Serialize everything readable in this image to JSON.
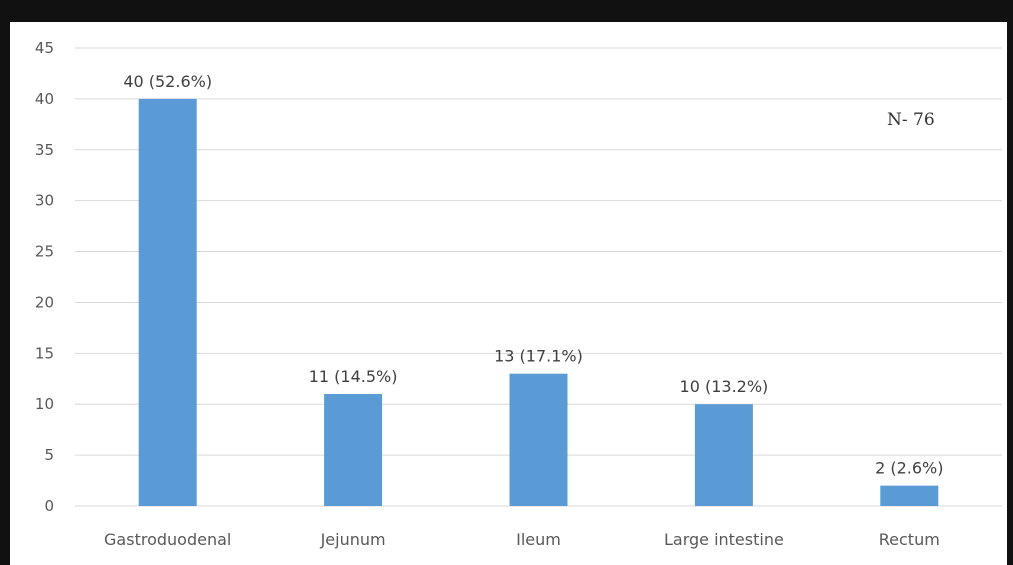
{
  "chart_data": {
    "type": "bar",
    "title": "",
    "xlabel": "",
    "ylabel": "",
    "categories": [
      "Gastroduodenal",
      "Jejunum",
      "Ileum",
      "Large intestine",
      "Rectum"
    ],
    "values": [
      40,
      11,
      13,
      10,
      2
    ],
    "data_labels": [
      "40 (52.6%)",
      "11 (14.5%)",
      "13 (17.1%)",
      "10 (13.2%)",
      "2 (2.6%)"
    ],
    "yticks": [
      "0",
      "5",
      "10",
      "15",
      "20",
      "25",
      "30",
      "35",
      "40",
      "45"
    ],
    "ylim": [
      0,
      45
    ],
    "grid": true,
    "annotation": "N- 76",
    "bar_color": "#5b9bd5"
  }
}
